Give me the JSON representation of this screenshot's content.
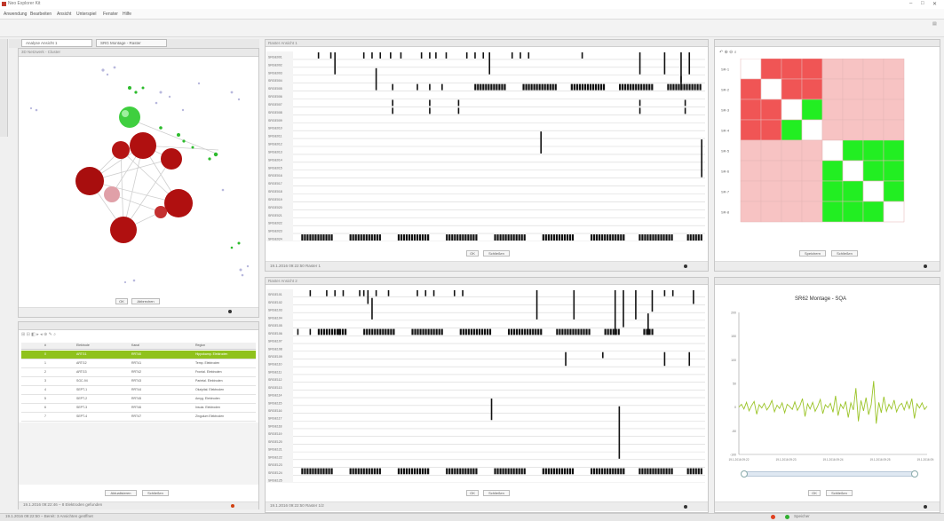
{
  "window": {
    "title": "Neo Explorer Kit",
    "controls": [
      "–",
      "□",
      "✕"
    ]
  },
  "menubar": {
    "items": [
      "Anwendung",
      "Bearbeiten",
      "Ansicht",
      "Unterspiel",
      "Fenster",
      "Hilfe"
    ]
  },
  "tabs": [
    {
      "label": "Analyse Ansicht 1"
    },
    {
      "label": "SRG Montage - Raster"
    }
  ],
  "left_panel": {
    "title": "3D Netzwerk - Cluster",
    "buttons": [
      "OK",
      "Abbrechen"
    ]
  },
  "table_panel": {
    "columns": [
      "#",
      "Elektrode",
      "Kanal",
      "Region"
    ],
    "rows": [
      [
        "0",
        "ARTG1",
        "RRT40",
        "Hippokamp. Elektroden"
      ],
      [
        "1",
        "ARTG2",
        "RRT41",
        "Temp. Elektroden"
      ],
      [
        "2",
        "ARTG3",
        "RRT42",
        "Frontal. Elektroden"
      ],
      [
        "3",
        "SGC-94",
        "RRT43",
        "Parietal. Elektroden"
      ],
      [
        "4",
        "SEPT-1",
        "RRT44",
        "Okzipital. Elektroden"
      ],
      [
        "5",
        "SEPT-2",
        "RRT45",
        "Amyg. Elektroden"
      ],
      [
        "6",
        "SEPT-3",
        "RRT46",
        "Insula. Elektroden"
      ],
      [
        "7",
        "SEPT-4",
        "RRT47",
        "Zingulum Elektroden"
      ]
    ],
    "buttons": [
      "Aktualisieren",
      "Schließen"
    ],
    "status": "19.1.2016 09:22:46 – 8 Elektroden gefunden"
  },
  "raster_top": {
    "title": "Raster Ansicht 1",
    "channel_labels": [
      "SRGE001",
      "SRGE002",
      "SRGE003",
      "SRGE004",
      "SRGE005",
      "SRGE006",
      "SRGE007",
      "SRGE008",
      "SRGE009",
      "SRGE010",
      "SRGE011",
      "SRGE012",
      "SRGE013",
      "SRGE014",
      "SRGE015",
      "SRGE016",
      "SRGE017",
      "SRGE018",
      "SRGE019",
      "SRGE020",
      "SRGE021",
      "SRGE022",
      "SRGE023",
      "SRGE024"
    ],
    "buttons": [
      "OK",
      "Schließen"
    ],
    "status": "19.1.2016 09:22:50 Raster 1"
  },
  "raster_bottom": {
    "title": "Raster Ansicht 2",
    "channel_labels": [
      "SRGE101",
      "SRGE102",
      "SRGE103",
      "SRGE104",
      "SRGE105",
      "SRGE106",
      "SRGE107",
      "SRGE108",
      "SRGE109",
      "SRGE110",
      "SRGE111",
      "SRGE112",
      "SRGE113",
      "SRGE114",
      "SRGE115",
      "SRGE116",
      "SRGE117",
      "SRGE118",
      "SRGE119",
      "SRGE120",
      "SRGE121",
      "SRGE122",
      "SRGE123",
      "SRGE124",
      "SRGE125"
    ],
    "buttons": [
      "OK",
      "Schließen"
    ],
    "status": "19.1.2016 09:22:50 Raster 1/2"
  },
  "matrix_panel": {
    "row_labels": [
      "SR-1",
      "SR-2",
      "SR-3",
      "SR-4",
      "SR-5",
      "SR-6",
      "SR-7",
      "SR-8"
    ],
    "buttons": [
      "Speichern",
      "Schließen"
    ],
    "colors": {
      "red_strong": "#f05555",
      "red_light": "#f7c3c3",
      "green": "#22ee22",
      "white": "#ffffff"
    }
  },
  "chart_panel": {
    "buttons": [
      "OK",
      "Schließen"
    ]
  },
  "chart_data": {
    "type": "line",
    "title": "SR62 Montage - SQA",
    "xlabel": "",
    "ylabel": "",
    "yticks": [
      "200",
      "150",
      "100",
      "50",
      "0",
      "-50",
      "-100"
    ],
    "xticks": [
      "19.1.2016 09:22",
      "19.1.2016 09:23",
      "19.1.2016 09:24",
      "19.1.2016 09:25",
      "19.1.2016 09:26"
    ],
    "series": [
      {
        "values": [
          0,
          6,
          -4,
          10,
          -8,
          3,
          12,
          -15,
          5,
          -2,
          8,
          -6,
          2,
          14,
          -10,
          4,
          -3,
          9,
          -12,
          6,
          1,
          -5,
          11,
          -7,
          3,
          18,
          -20,
          7,
          -4,
          10,
          -9,
          2,
          16,
          -14,
          5,
          -1,
          8,
          -11,
          24,
          -18,
          6,
          -3,
          12,
          -22,
          9,
          -6,
          40,
          -30,
          14,
          -8,
          20,
          -16,
          5,
          55,
          -35,
          10,
          -12,
          22,
          -9,
          6,
          -4,
          15,
          -10,
          3,
          8,
          -6,
          12,
          -3,
          18,
          -24,
          7,
          -2,
          9,
          -5,
          2
        ]
      }
    ],
    "color": "#9bc428"
  },
  "status_bar": {
    "text": "19.1.2016 09:22:50 – Bereit: 3 Ansichten geöffnet",
    "right": "Speicher"
  }
}
